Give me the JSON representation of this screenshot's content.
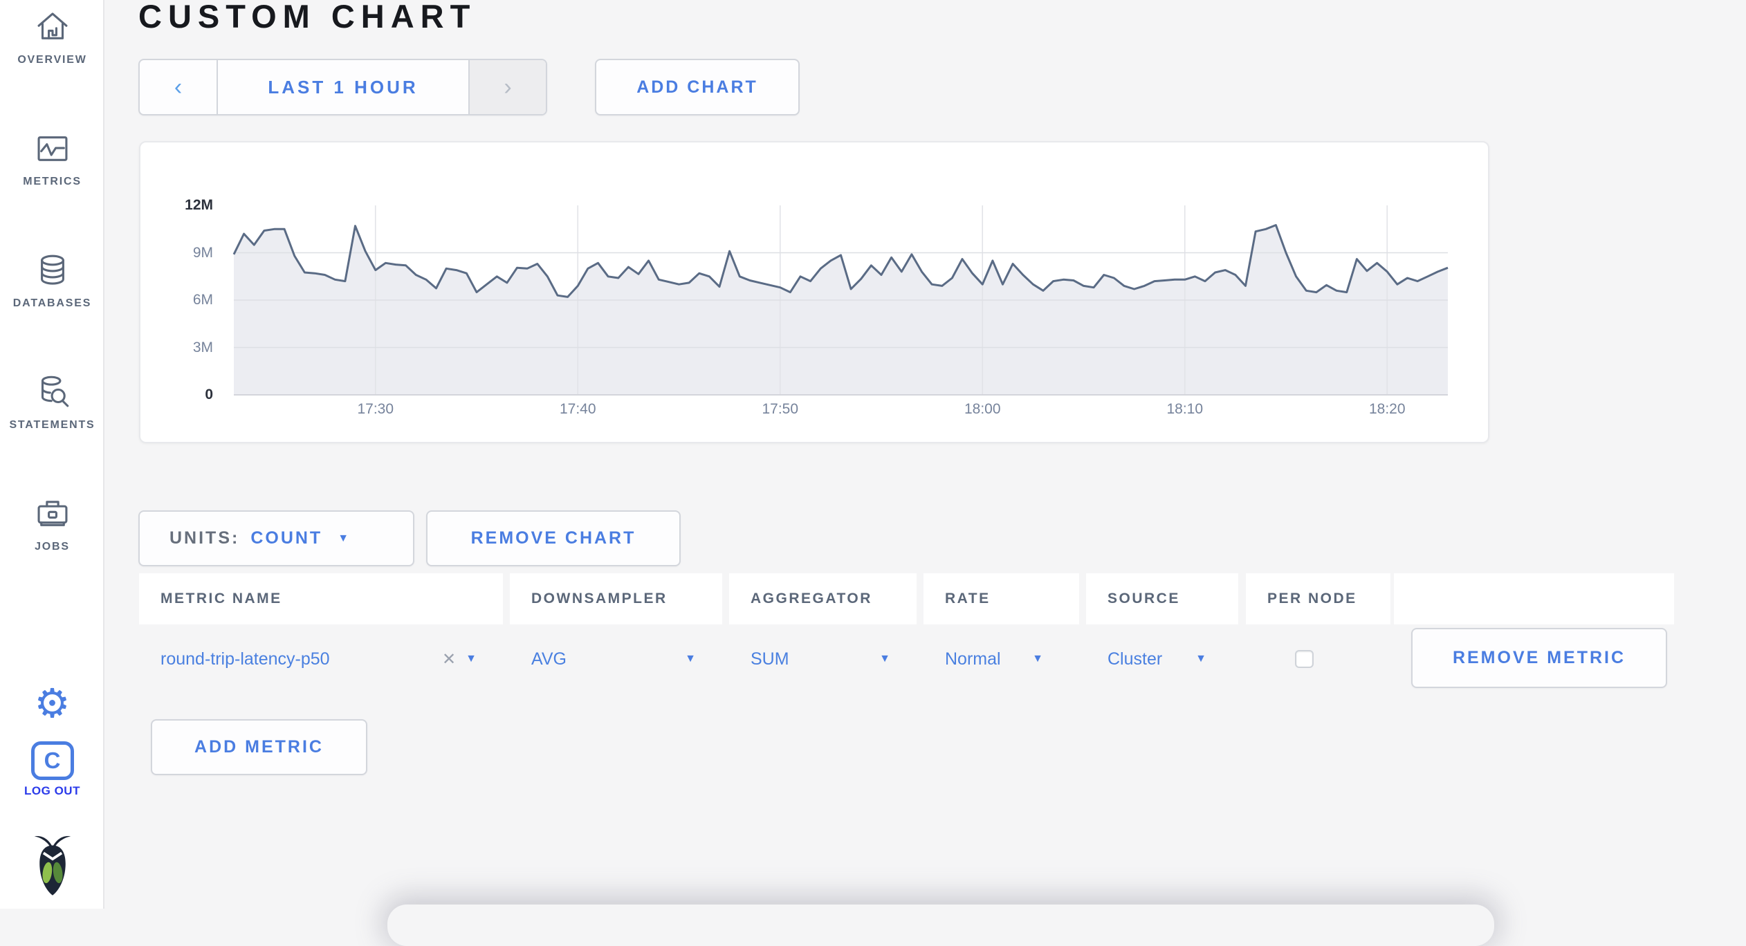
{
  "header": {
    "title": "CUSTOM CHART"
  },
  "sidebar": {
    "items": [
      {
        "label": "OVERVIEW",
        "icon": "home-icon"
      },
      {
        "label": "METRICS",
        "icon": "metrics-icon"
      },
      {
        "label": "DATABASES",
        "icon": "database-icon"
      },
      {
        "label": "STATEMENTS",
        "icon": "statements-icon"
      },
      {
        "label": "JOBS",
        "icon": "jobs-icon"
      }
    ],
    "settings_icon": "gear-icon",
    "logout": {
      "label": "LOG OUT",
      "logo_letter": "C",
      "icon": "cockroach-c-logo"
    },
    "brand_icon": "cockroach-bug-logo"
  },
  "time_selector": {
    "prev_symbol": "‹",
    "range_label": "LAST 1 HOUR",
    "next_symbol": "›"
  },
  "add_chart_label": "ADD CHART",
  "chart_controls": {
    "units_label": "UNITS:",
    "units_value": "COUNT",
    "remove_chart_label": "REMOVE CHART"
  },
  "icons": {
    "caret_down_glyph": "▼",
    "clear_glyph": "✕",
    "gear_glyph": "⚙"
  },
  "chart_data": {
    "type": "area",
    "title": "",
    "xlabel": "",
    "ylabel": "",
    "x_range": [
      "17:23",
      "18:23"
    ],
    "x_ticks": [
      "17:30",
      "17:40",
      "17:50",
      "18:00",
      "18:10",
      "18:20"
    ],
    "tick_minutes": [
      7,
      17,
      27,
      37,
      47,
      57
    ],
    "y_ticks": [
      "0",
      "3M",
      "6M",
      "9M",
      "12M"
    ],
    "ylim_millions": [
      0,
      12
    ],
    "grid": true,
    "legend": "none",
    "series": [
      {
        "name": "round-trip-latency-p50",
        "unit": "count",
        "values_millions": [
          8.9,
          10.2,
          9.5,
          10.4,
          10.5,
          10.5,
          8.8,
          7.75,
          7.7,
          7.6,
          7.3,
          7.2,
          10.7,
          9.1,
          7.9,
          8.35,
          8.25,
          8.2,
          7.6,
          7.3,
          6.75,
          8.0,
          7.9,
          7.7,
          6.5,
          7.0,
          7.5,
          7.1,
          8.05,
          8.0,
          8.3,
          7.5,
          6.3,
          6.2,
          6.9,
          8.0,
          8.35,
          7.5,
          7.4,
          8.1,
          7.65,
          8.5,
          7.3,
          7.15,
          7.0,
          7.1,
          7.7,
          7.5,
          6.85,
          9.1,
          7.5,
          7.25,
          7.1,
          6.95,
          6.8,
          6.5,
          7.5,
          7.2,
          8.0,
          8.5,
          8.85,
          6.7,
          7.35,
          8.2,
          7.6,
          8.7,
          7.8,
          8.9,
          7.8,
          7.0,
          6.9,
          7.4,
          8.6,
          7.7,
          7.0,
          8.5,
          7.0,
          8.3,
          7.6,
          7.0,
          6.6,
          7.2,
          7.3,
          7.25,
          6.9,
          6.8,
          7.6,
          7.4,
          6.9,
          6.7,
          6.9,
          7.2,
          7.25,
          7.3,
          7.3,
          7.5,
          7.2,
          7.75,
          7.9,
          7.6,
          6.9,
          10.35,
          10.5,
          10.75,
          9.0,
          7.5,
          6.6,
          6.5,
          6.95,
          6.6,
          6.5,
          8.6,
          7.85,
          8.35,
          7.8,
          7.0,
          7.4,
          7.2,
          7.5,
          7.8,
          8.05
        ]
      }
    ]
  },
  "metrics_table": {
    "columns": [
      "METRIC NAME",
      "DOWNSAMPLER",
      "AGGREGATOR",
      "RATE",
      "SOURCE",
      "PER NODE",
      ""
    ],
    "rows": [
      {
        "metric_name": "round-trip-latency-p50",
        "downsampler": "AVG",
        "aggregator": "SUM",
        "rate": "Normal",
        "source": "Cluster",
        "per_node_checked": false,
        "remove_label": "REMOVE METRIC"
      }
    ]
  },
  "add_metric_label": "ADD METRIC",
  "colors": {
    "accent_blue": "#4a7de1",
    "accent_light_blue": "#5b9fe8",
    "sidebar_slate": "#5b6779",
    "logout_blue": "#2b3bea",
    "chart_line": "#5a6b85",
    "chart_fill": "#ecedf2",
    "page_background": "#f5f5f6"
  }
}
